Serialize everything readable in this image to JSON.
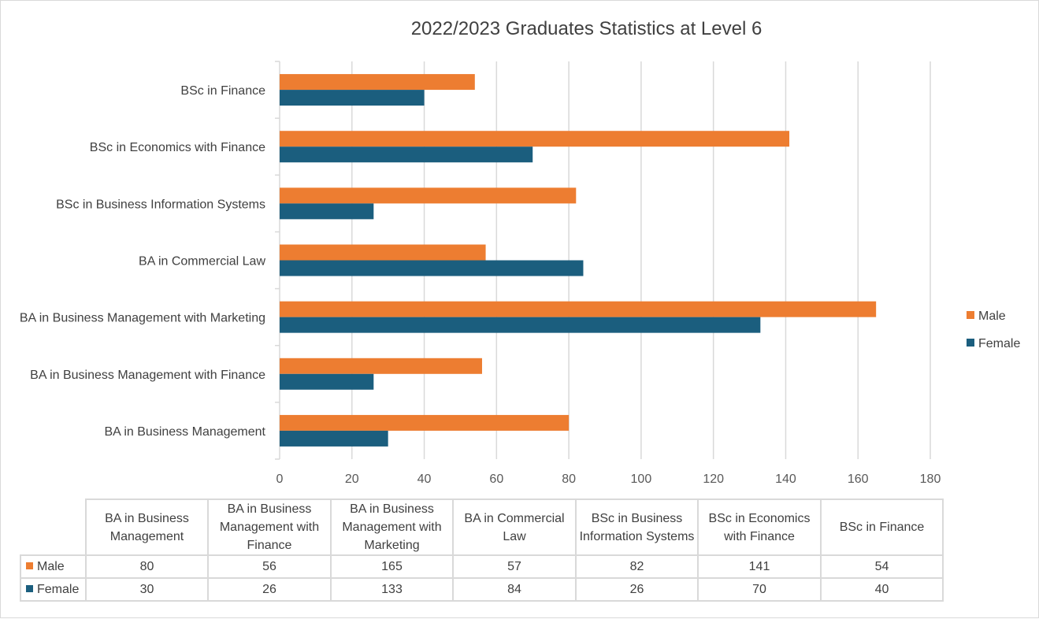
{
  "chart_data": {
    "type": "bar",
    "orientation": "horizontal",
    "title": "2022/2023 Graduates Statistics at Level 6",
    "categories": [
      "BA in Business Management",
      "BA in Business Management with Finance",
      "BA in Business Management with Marketing",
      "BA in Commercial Law",
      "BSc in Business Information Systems",
      "BSc in Economics with Finance",
      "BSc in Finance"
    ],
    "table_headers": [
      "BA in Business Management",
      "BA in Business Management with Finance",
      "BA in Business Management with Marketing",
      "BA in Commercial Law",
      "BSc in Business Information Systems",
      "BSc in Economics with Finance",
      "BSc in Finance"
    ],
    "series": [
      {
        "name": "Male",
        "color": "#ED7D31",
        "values": [
          80,
          56,
          165,
          57,
          82,
          141,
          54
        ]
      },
      {
        "name": "Female",
        "color": "#1B5E7E",
        "values": [
          30,
          26,
          133,
          84,
          26,
          70,
          40
        ]
      }
    ],
    "xlim": [
      0,
      180
    ],
    "x_ticks": [
      0,
      20,
      40,
      60,
      80,
      100,
      120,
      140,
      160,
      180
    ],
    "grid": true,
    "legend_position": "right",
    "data_table": true
  }
}
